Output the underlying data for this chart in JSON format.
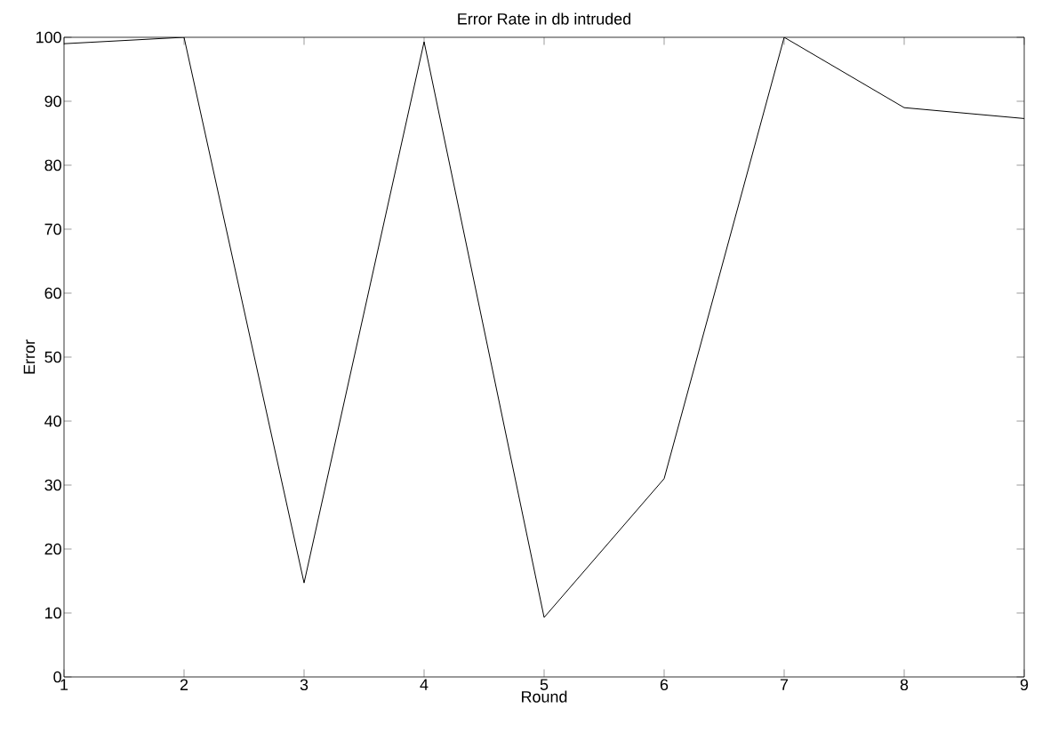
{
  "chart_data": {
    "type": "line",
    "title": "Error Rate in db intruded",
    "xlabel": "Round",
    "ylabel": "Error",
    "x": [
      1,
      2,
      3,
      4,
      5,
      6,
      7,
      8,
      9
    ],
    "series": [
      {
        "color": "#000000",
        "values": [
          99,
          100,
          14.7,
          99.3,
          9.3,
          31,
          100,
          89,
          87.3
        ]
      }
    ],
    "xlim": [
      1,
      9
    ],
    "xticks": [
      1,
      2,
      3,
      4,
      5,
      6,
      7,
      8,
      9
    ],
    "ylim": [
      0,
      100
    ],
    "yticks": [
      0,
      10,
      20,
      30,
      40,
      50,
      60,
      70,
      80,
      90,
      100
    ],
    "grid": false,
    "marker": "none",
    "line_style": "solid"
  }
}
